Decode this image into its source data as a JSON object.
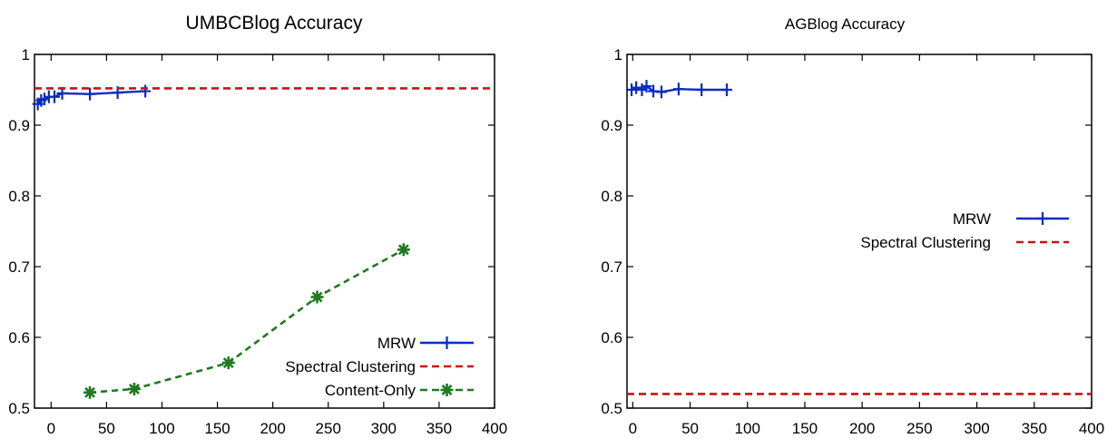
{
  "chart_data": [
    {
      "type": "line",
      "title": "UMBCBlog Accuracy",
      "xlabel": "",
      "ylabel": "",
      "xlim": [
        -15,
        400
      ],
      "ylim": [
        0.5,
        1.0
      ],
      "x_ticks": [
        "0",
        "50",
        "100",
        "150",
        "200",
        "250",
        "300",
        "350",
        "400"
      ],
      "y_ticks": [
        "0.5",
        "0.6",
        "0.7",
        "0.8",
        "0.9",
        "1"
      ],
      "legend_position": "bottom-right",
      "series": [
        {
          "name": "MRW",
          "color": "#0a2cc2",
          "style": "solid",
          "marker": "plus",
          "points": [
            [
              -12,
              0.93
            ],
            [
              -9,
              0.935
            ],
            [
              -6,
              0.937
            ],
            [
              -2,
              0.94
            ],
            [
              3,
              0.94
            ],
            [
              10,
              0.945
            ],
            [
              35,
              0.944
            ],
            [
              60,
              0.946
            ],
            [
              85,
              0.948
            ]
          ]
        },
        {
          "name": "Spectral Clustering",
          "color": "#cc1111",
          "style": "dashed",
          "marker": "none",
          "points": [
            [
              -15,
              0.952
            ],
            [
              400,
              0.952
            ]
          ]
        },
        {
          "name": "Content-Only",
          "color": "#1f7a1f",
          "style": "dashed",
          "marker": "star",
          "points": [
            [
              35,
              0.522
            ],
            [
              75,
              0.527
            ],
            [
              160,
              0.564
            ],
            [
              240,
              0.657
            ],
            [
              318,
              0.724
            ]
          ]
        }
      ]
    },
    {
      "type": "line",
      "title": "AGBlog Accuracy",
      "xlabel": "",
      "ylabel": "",
      "xlim": [
        -5,
        400
      ],
      "ylim": [
        0.5,
        1.0
      ],
      "x_ticks": [
        "0",
        "50",
        "100",
        "150",
        "200",
        "250",
        "300",
        "350",
        "400"
      ],
      "y_ticks": [
        "0.5",
        "0.6",
        "0.7",
        "0.8",
        "0.9",
        "1"
      ],
      "legend_position": "right",
      "series": [
        {
          "name": "MRW",
          "color": "#0a2cc2",
          "style": "solid",
          "marker": "plus",
          "points": [
            [
              -1,
              0.95
            ],
            [
              3,
              0.953
            ],
            [
              8,
              0.95
            ],
            [
              12,
              0.955
            ],
            [
              18,
              0.948
            ],
            [
              25,
              0.947
            ],
            [
              40,
              0.951
            ],
            [
              60,
              0.95
            ],
            [
              82,
              0.95
            ]
          ]
        },
        {
          "name": "Spectral Clustering",
          "color": "#cc1111",
          "style": "dashed",
          "marker": "none",
          "points": [
            [
              -5,
              0.52
            ],
            [
              400,
              0.52
            ]
          ]
        }
      ]
    }
  ]
}
